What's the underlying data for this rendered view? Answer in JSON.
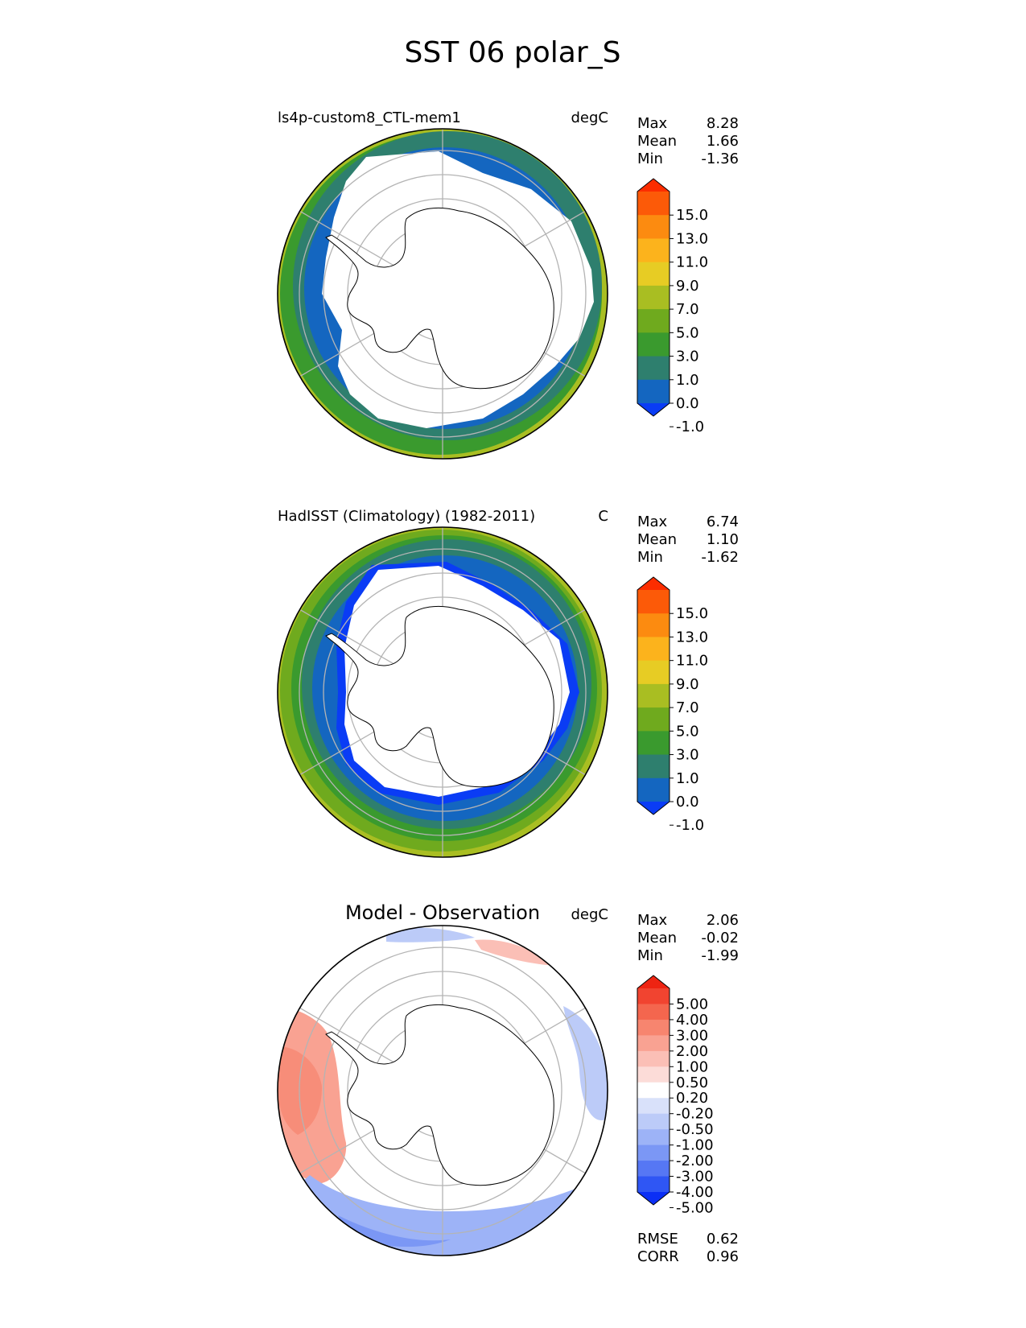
{
  "figure": {
    "title": "SST 06 polar_S"
  },
  "colors": {
    "sst_bins": [
      "#0a3cf5",
      "#1466c0",
      "#2e7f6e",
      "#3a9a2e",
      "#6faa1e",
      "#a9be22",
      "#e7cc24",
      "#fcb31c",
      "#fc8b10",
      "#fc5a08",
      "#fc2d00"
    ],
    "diff_bins": [
      "#0b2ff5",
      "#2f56f4",
      "#5677f4",
      "#7b97f5",
      "#9db3f7",
      "#bccbf8",
      "#d9e1fa",
      "#ffffff",
      "#fcdcd8",
      "#fbbfb6",
      "#f9a292",
      "#f7856f",
      "#f4664e",
      "#f14430",
      "#ee2412"
    ],
    "land": "#ffffff",
    "coast": "#000000",
    "grid": "#b4b4b4"
  },
  "panels": [
    {
      "left_title": "ls4p-custom8_CTL-mem1",
      "units": "degC",
      "stats": [
        {
          "label": "Max",
          "value": "8.28"
        },
        {
          "label": "Mean",
          "value": "1.66"
        },
        {
          "label": "Min",
          "value": "-1.36"
        }
      ],
      "colorbar_ticks": [
        "15.0",
        "13.0",
        "11.0",
        "9.0",
        "7.0",
        "5.0",
        "3.0",
        "1.0",
        "0.0",
        "-1.0"
      ],
      "palette": "sst_bins"
    },
    {
      "left_title": "HadISST (Climatology) (1982-2011)",
      "units": "C",
      "stats": [
        {
          "label": "Max",
          "value": "6.74"
        },
        {
          "label": "Mean",
          "value": "1.10"
        },
        {
          "label": "Min",
          "value": "-1.62"
        }
      ],
      "colorbar_ticks": [
        "15.0",
        "13.0",
        "11.0",
        "9.0",
        "7.0",
        "5.0",
        "3.0",
        "1.0",
        "0.0",
        "-1.0"
      ],
      "palette": "sst_bins"
    },
    {
      "center_title": "Model - Observation",
      "units": "degC",
      "stats": [
        {
          "label": "Max",
          "value": "2.06"
        },
        {
          "label": "Mean",
          "value": "-0.02"
        },
        {
          "label": "Min",
          "value": "-1.99"
        }
      ],
      "colorbar_ticks": [
        "5.00",
        "4.00",
        "3.00",
        "2.00",
        "1.00",
        "0.50",
        "0.20",
        "-0.20",
        "-0.50",
        "-1.00",
        "-2.00",
        "-3.00",
        "-4.00",
        "-5.00"
      ],
      "palette": "diff_bins",
      "extra_stats": [
        {
          "label": "RMSE",
          "value": "0.62"
        },
        {
          "label": "CORR",
          "value": "0.96"
        }
      ]
    }
  ],
  "chart_data": [
    {
      "type": "heatmap",
      "projection": "south-polar-stereographic",
      "title": "ls4p-custom8_CTL-mem1",
      "units": "degC",
      "color_levels": [
        -1.0,
        0.0,
        1.0,
        3.0,
        5.0,
        7.0,
        9.0,
        11.0,
        13.0,
        15.0
      ],
      "extend": "both",
      "stats": {
        "max": 8.28,
        "mean": 1.66,
        "min": -1.36
      }
    },
    {
      "type": "heatmap",
      "projection": "south-polar-stereographic",
      "title": "HadISST (Climatology) (1982-2011)",
      "units": "C",
      "color_levels": [
        -1.0,
        0.0,
        1.0,
        3.0,
        5.0,
        7.0,
        9.0,
        11.0,
        13.0,
        15.0
      ],
      "extend": "both",
      "stats": {
        "max": 6.74,
        "mean": 1.1,
        "min": -1.62
      }
    },
    {
      "type": "heatmap",
      "projection": "south-polar-stereographic",
      "title": "Model - Observation",
      "units": "degC",
      "color_levels": [
        -5.0,
        -4.0,
        -3.0,
        -2.0,
        -1.0,
        -0.5,
        -0.2,
        0.2,
        0.5,
        1.0,
        2.0,
        3.0,
        4.0,
        5.0
      ],
      "extend": "both",
      "stats": {
        "max": 2.06,
        "mean": -0.02,
        "min": -1.99,
        "rmse": 0.62,
        "corr": 0.96
      }
    }
  ]
}
